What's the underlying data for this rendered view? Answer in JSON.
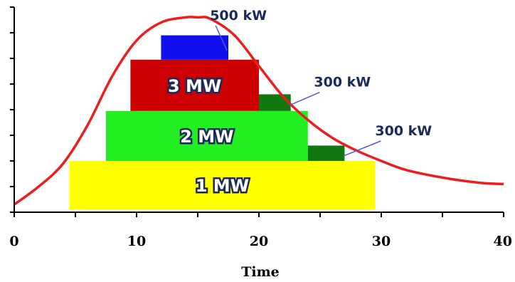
{
  "chart_data": {
    "type": "area",
    "xlabel": "Time",
    "ylabel": "",
    "xlim": [
      0,
      40
    ],
    "ylim": [
      0,
      8
    ],
    "x_ticks": [
      "0",
      "10",
      "20",
      "30",
      "40"
    ],
    "y_tick_count": 9,
    "grid": false,
    "demand_curve": {
      "color": "#ee1c1c",
      "x": [
        0,
        2,
        4,
        6,
        8,
        10,
        12,
        14,
        15,
        16,
        18,
        20,
        22,
        24,
        26,
        28,
        30,
        32,
        35,
        38,
        40
      ],
      "y": [
        0.3,
        1.0,
        1.9,
        3.4,
        5.3,
        6.7,
        7.4,
        7.6,
        7.6,
        7.55,
        6.9,
        5.7,
        4.5,
        3.6,
        2.9,
        2.4,
        2.0,
        1.65,
        1.35,
        1.15,
        1.1
      ]
    },
    "blocks": [
      {
        "label": "1 MW",
        "x_start": 4.5,
        "x_end": 29.5,
        "y_start": 0.1,
        "y_end": 2.0,
        "color": "#ffff00"
      },
      {
        "label": "2 MW",
        "x_start": 7.5,
        "x_end": 24.0,
        "y_start": 2.0,
        "y_end": 3.95,
        "color": "#22ee22"
      },
      {
        "label": "3 MW",
        "x_start": 9.5,
        "x_end": 20.0,
        "y_start": 3.95,
        "y_end": 5.95,
        "color": "#cc0000"
      },
      {
        "label": "",
        "x_start": 12.0,
        "x_end": 17.5,
        "y_start": 5.95,
        "y_end": 6.9,
        "color": "#1010ee"
      },
      {
        "label": "",
        "x_start": 20.0,
        "x_end": 22.6,
        "y_start": 3.95,
        "y_end": 4.6,
        "color": "#117711"
      },
      {
        "label": "",
        "x_start": 24.0,
        "x_end": 27.0,
        "y_start": 2.0,
        "y_end": 2.6,
        "color": "#117711"
      }
    ],
    "annotations": [
      {
        "text": "500 kW",
        "x": 16.0,
        "y": 7.5
      },
      {
        "text": "300 kW",
        "x": 24.5,
        "y": 4.9
      },
      {
        "text": "300 kW",
        "x": 29.5,
        "y": 3.0
      }
    ]
  }
}
